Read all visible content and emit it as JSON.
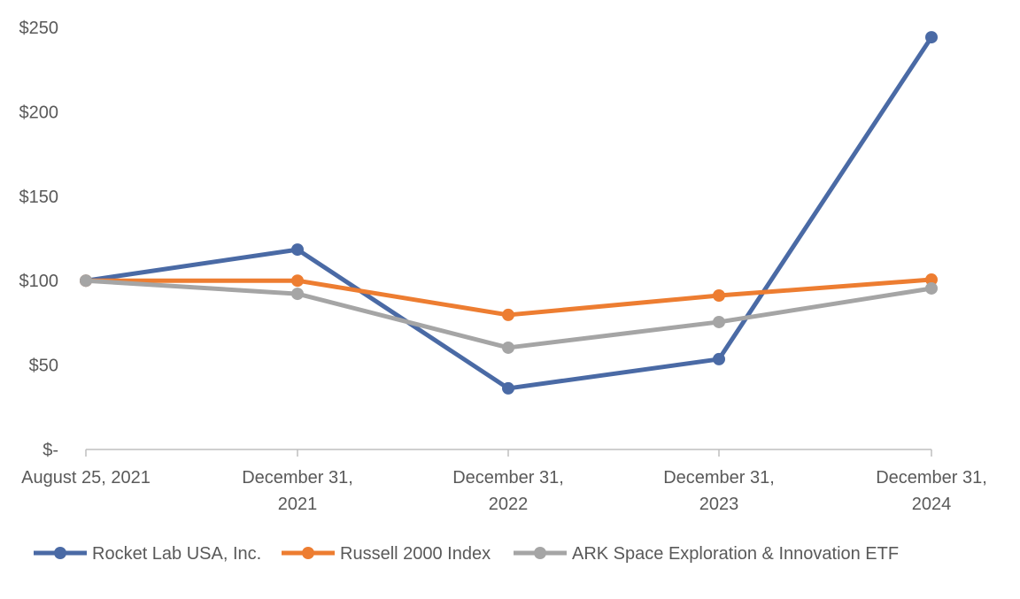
{
  "chart_data": {
    "type": "line",
    "title": "",
    "xlabel": "",
    "ylabel": "",
    "categories": [
      [
        "August 25, 2021"
      ],
      [
        "December 31,",
        "2021"
      ],
      [
        "December 31,",
        "2022"
      ],
      [
        "December 31,",
        "2023"
      ],
      [
        "December 31,",
        "2024"
      ]
    ],
    "ylim": [
      0,
      250
    ],
    "yticks": [
      0,
      50,
      100,
      150,
      200,
      250
    ],
    "ytick_labels": [
      "$-",
      "$50",
      "$100",
      "$150",
      "$200",
      "$250"
    ],
    "grid": false,
    "legend_placement": "bottom",
    "series": [
      {
        "name": "Rocket Lab USA, Inc.",
        "color": "#4a6aa5",
        "values": [
          100,
          118.4,
          36.2,
          53.5,
          244.2
        ]
      },
      {
        "name": "Russell 2000 Index",
        "color": "#ed7d31",
        "values": [
          100,
          100,
          79.7,
          91.2,
          100.6
        ]
      },
      {
        "name": "ARK Space Exploration & Innovation ETF",
        "color": "#a5a5a5",
        "values": [
          100,
          92.2,
          60.3,
          75.5,
          95.4
        ]
      }
    ]
  }
}
